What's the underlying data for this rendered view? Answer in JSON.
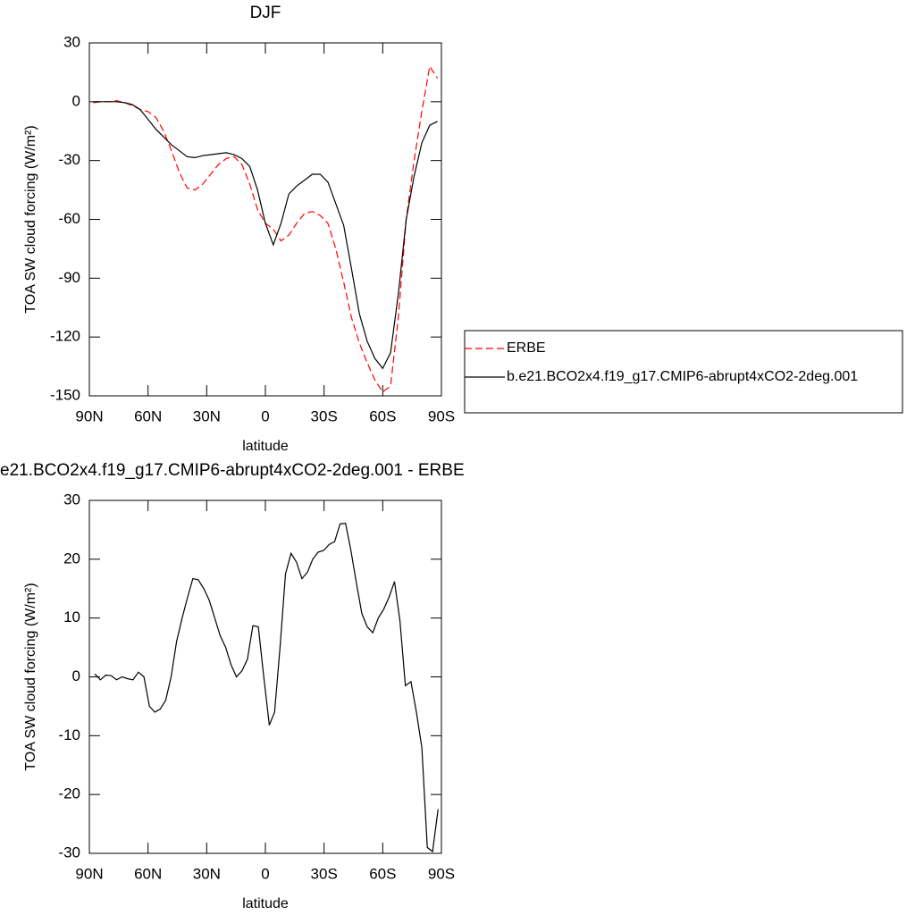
{
  "chart_data": [
    {
      "type": "line",
      "title": "DJF",
      "xlabel": "latitude",
      "ylabel": "TOA SW cloud forcing (W/m²)",
      "x": [
        88,
        84,
        80,
        76,
        72,
        68,
        64,
        60,
        56,
        52,
        48,
        44,
        40,
        36,
        32,
        28,
        24,
        20,
        16,
        12,
        8,
        4,
        0,
        -4,
        -8,
        -12,
        -16,
        -20,
        -24,
        -28,
        -32,
        -36,
        -40,
        -44,
        -48,
        -52,
        -56,
        -60,
        -64,
        -68,
        -72,
        -76,
        -80,
        -84,
        -88
      ],
      "series": [
        {
          "name": "ERBE",
          "color": "#ff0000",
          "dashed": true,
          "values": [
            -0.5,
            0,
            0,
            0.5,
            -0.5,
            -2,
            -4,
            -5,
            -8,
            -15,
            -25,
            -36,
            -44,
            -45,
            -42,
            -37,
            -32,
            -29,
            -28,
            -32,
            -42,
            -55,
            -62,
            -65,
            -71,
            -68,
            -62,
            -57,
            -56,
            -58,
            -62,
            -75,
            -92,
            -110,
            -123,
            -133,
            -142,
            -148,
            -145,
            -110,
            -60,
            -30,
            -5,
            18,
            12
          ]
        },
        {
          "name": "b.e21.BCO2x4.f19_g17.CMIP6-abrupt4xCO2-2deg.001",
          "color": "#000000",
          "dashed": false,
          "values": [
            0,
            0,
            0,
            0,
            -0.5,
            -1.5,
            -4,
            -9,
            -14,
            -18,
            -22,
            -25,
            -28,
            -28.5,
            -27.5,
            -27,
            -26.5,
            -26,
            -27,
            -29,
            -33,
            -45,
            -62,
            -73,
            -62,
            -47,
            -43,
            -40,
            -37,
            -37,
            -41,
            -52,
            -63,
            -85,
            -108,
            -122,
            -131,
            -136,
            -128,
            -98,
            -60,
            -38,
            -21,
            -12,
            -10
          ]
        }
      ],
      "xlim": [
        90,
        -90
      ],
      "xticks": [
        {
          "value": 90,
          "label": "90N"
        },
        {
          "value": 60,
          "label": "60N"
        },
        {
          "value": 30,
          "label": "30N"
        },
        0,
        {
          "value": -30,
          "label": "30S"
        },
        {
          "value": -60,
          "label": "60S"
        },
        {
          "value": -90,
          "label": "90S"
        }
      ],
      "ylim": [
        -150,
        30
      ],
      "yticks": [
        30,
        0,
        -30,
        -60,
        -90,
        -120,
        -150
      ],
      "legend": "right"
    },
    {
      "type": "line",
      "title": "e21.BCO2x4.f19_g17.CMIP6-abrupt4xCO2-2deg.001 - ERBE",
      "xlabel": "latitude",
      "ylabel": "TOA SW cloud forcing (W/m²)",
      "x": [
        87.2,
        84.4,
        81.6,
        78.8,
        76.1,
        73.3,
        70.5,
        67.7,
        64.9,
        62.1,
        59.3,
        56.5,
        53.8,
        51.0,
        48.2,
        45.4,
        42.6,
        39.8,
        37.1,
        34.3,
        31.5,
        28.7,
        25.9,
        23.1,
        20.3,
        17.5,
        14.8,
        12.0,
        9.2,
        6.4,
        3.6,
        0.8,
        -2.0,
        -4.7,
        -7.5,
        -10.3,
        -13.1,
        -15.9,
        -18.7,
        -21.5,
        -24.2,
        -27.0,
        -29.8,
        -32.6,
        -35.4,
        -38.2,
        -41.0,
        -43.7,
        -46.5,
        -49.3,
        -52.1,
        -54.9,
        -57.7,
        -60.5,
        -63.2,
        -66.0,
        -68.8,
        -71.6,
        -74.4,
        -77.2,
        -80.0,
        -82.8,
        -85.5,
        -88.3
      ],
      "series": [
        {
          "color": "#000000",
          "dashed": false,
          "values": [
            0.5,
            -0.5,
            0.3,
            0.2,
            -0.5,
            0,
            -0.3,
            -0.5,
            0.8,
            0,
            -5,
            -6,
            -5.5,
            -4,
            0,
            6,
            10,
            13.5,
            16.7,
            16.5,
            15,
            13,
            10,
            7,
            5,
            2,
            0,
            1,
            3,
            8.7,
            8.5,
            0,
            -8.2,
            -6,
            5,
            17.5,
            21,
            19.5,
            16.7,
            17.8,
            20,
            21.2,
            21.5,
            22.5,
            23,
            26,
            26.1,
            21.5,
            16,
            10.8,
            8.5,
            7.5,
            10,
            11.5,
            13.5,
            16.2,
            9.5,
            -1.5,
            -0.8,
            -6,
            -12,
            -29,
            -29.7,
            -22.5
          ]
        }
      ],
      "xlim": [
        90,
        -90
      ],
      "xticks": [
        {
          "value": 90,
          "label": "90N"
        },
        {
          "value": 60,
          "label": "60N"
        },
        {
          "value": 30,
          "label": "30N"
        },
        0,
        {
          "value": -30,
          "label": "30S"
        },
        {
          "value": -60,
          "label": "60S"
        },
        {
          "value": -90,
          "label": "90S"
        }
      ],
      "ylim": [
        -30,
        30
      ],
      "yticks": [
        30,
        20,
        10,
        0,
        -10,
        -20,
        -30
      ]
    }
  ]
}
